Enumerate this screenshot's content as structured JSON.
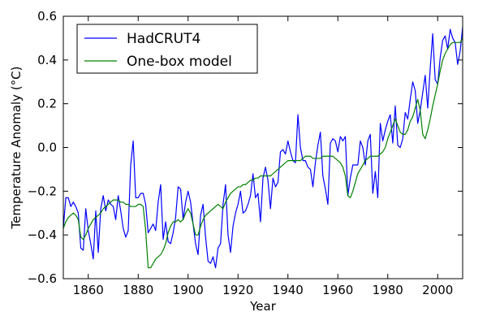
{
  "chart_data": {
    "type": "line",
    "title": "",
    "xlabel": "Year",
    "ylabel": "Temperature Anomaly (°C)",
    "xlim": [
      1850,
      2010
    ],
    "ylim": [
      -0.6,
      0.6
    ],
    "xticks": [
      1860,
      1880,
      1900,
      1920,
      1940,
      1960,
      1980,
      2000
    ],
    "yticks": [
      -0.6,
      -0.4,
      -0.2,
      0.0,
      0.2,
      0.4,
      0.6
    ],
    "xtick_labels": [
      "1860",
      "1880",
      "1900",
      "1920",
      "1940",
      "1960",
      "1980",
      "2000"
    ],
    "ytick_labels": [
      "−0.6",
      "−0.4",
      "−0.2",
      "0.0",
      "0.2",
      "0.4",
      "0.6"
    ],
    "grid": false,
    "legend_position": "top-left",
    "series": [
      {
        "name": "HadCRUT4",
        "color": "#0000ff",
        "x": [
          1850,
          1851,
          1852,
          1853,
          1854,
          1855,
          1856,
          1857,
          1858,
          1859,
          1860,
          1861,
          1862,
          1863,
          1864,
          1865,
          1866,
          1867,
          1868,
          1869,
          1870,
          1871,
          1872,
          1873,
          1874,
          1875,
          1876,
          1877,
          1878,
          1879,
          1880,
          1881,
          1882,
          1883,
          1884,
          1885,
          1886,
          1887,
          1888,
          1889,
          1890,
          1891,
          1892,
          1893,
          1894,
          1895,
          1896,
          1897,
          1898,
          1899,
          1900,
          1901,
          1902,
          1903,
          1904,
          1905,
          1906,
          1907,
          1908,
          1909,
          1910,
          1911,
          1912,
          1913,
          1914,
          1915,
          1916,
          1917,
          1918,
          1919,
          1920,
          1921,
          1922,
          1923,
          1924,
          1925,
          1926,
          1927,
          1928,
          1929,
          1930,
          1931,
          1932,
          1933,
          1934,
          1935,
          1936,
          1937,
          1938,
          1939,
          1940,
          1941,
          1942,
          1943,
          1944,
          1945,
          1946,
          1947,
          1948,
          1949,
          1950,
          1951,
          1952,
          1953,
          1954,
          1955,
          1956,
          1957,
          1958,
          1959,
          1960,
          1961,
          1962,
          1963,
          1964,
          1965,
          1966,
          1967,
          1968,
          1969,
          1970,
          1971,
          1972,
          1973,
          1974,
          1975,
          1976,
          1977,
          1978,
          1979,
          1980,
          1981,
          1982,
          1983,
          1984,
          1985,
          1986,
          1987,
          1988,
          1989,
          1990,
          1991,
          1992,
          1993,
          1994,
          1995,
          1996,
          1997,
          1998,
          1999,
          2000,
          2001,
          2002,
          2003,
          2004,
          2005,
          2006,
          2007,
          2008,
          2009,
          2010
        ],
        "y": [
          -0.37,
          -0.23,
          -0.23,
          -0.27,
          -0.25,
          -0.27,
          -0.3,
          -0.46,
          -0.47,
          -0.28,
          -0.38,
          -0.44,
          -0.51,
          -0.29,
          -0.48,
          -0.28,
          -0.22,
          -0.29,
          -0.24,
          -0.26,
          -0.27,
          -0.33,
          -0.22,
          -0.29,
          -0.37,
          -0.41,
          -0.38,
          -0.08,
          0.03,
          -0.23,
          -0.23,
          -0.21,
          -0.21,
          -0.26,
          -0.39,
          -0.37,
          -0.35,
          -0.38,
          -0.25,
          -0.17,
          -0.42,
          -0.34,
          -0.43,
          -0.44,
          -0.39,
          -0.32,
          -0.18,
          -0.19,
          -0.33,
          -0.25,
          -0.2,
          -0.25,
          -0.35,
          -0.44,
          -0.49,
          -0.31,
          -0.26,
          -0.41,
          -0.52,
          -0.53,
          -0.5,
          -0.55,
          -0.46,
          -0.44,
          -0.26,
          -0.17,
          -0.4,
          -0.48,
          -0.36,
          -0.3,
          -0.26,
          -0.2,
          -0.3,
          -0.29,
          -0.26,
          -0.22,
          -0.12,
          -0.23,
          -0.21,
          -0.34,
          -0.14,
          -0.09,
          -0.15,
          -0.28,
          -0.14,
          -0.18,
          -0.16,
          -0.02,
          -0.01,
          -0.03,
          0.03,
          -0.02,
          -0.06,
          -0.07,
          0.15,
          0.0,
          -0.06,
          -0.06,
          -0.09,
          -0.1,
          -0.18,
          -0.07,
          0.01,
          0.07,
          -0.13,
          -0.19,
          -0.26,
          0.02,
          0.04,
          0.03,
          -0.02,
          0.05,
          0.03,
          0.05,
          -0.22,
          -0.14,
          -0.08,
          -0.08,
          -0.08,
          0.03,
          0.0,
          -0.08,
          0.03,
          0.06,
          -0.21,
          -0.11,
          -0.23,
          0.11,
          0.03,
          0.08,
          0.12,
          0.15,
          0.02,
          0.19,
          0.01,
          0.0,
          0.04,
          0.16,
          0.13,
          0.22,
          0.3,
          0.26,
          0.11,
          0.17,
          0.25,
          0.33,
          0.18,
          0.36,
          0.52,
          0.31,
          0.29,
          0.41,
          0.49,
          0.51,
          0.45,
          0.54,
          0.5,
          0.48,
          0.38,
          0.44,
          0.55
        ]
      },
      {
        "name": "One-box model",
        "color": "#008000",
        "x": [
          1850,
          1851,
          1852,
          1853,
          1854,
          1855,
          1856,
          1857,
          1858,
          1859,
          1860,
          1861,
          1862,
          1863,
          1864,
          1865,
          1866,
          1867,
          1868,
          1869,
          1870,
          1871,
          1872,
          1873,
          1874,
          1875,
          1876,
          1877,
          1878,
          1879,
          1880,
          1881,
          1882,
          1883,
          1884,
          1885,
          1886,
          1887,
          1888,
          1889,
          1890,
          1891,
          1892,
          1893,
          1894,
          1895,
          1896,
          1897,
          1898,
          1899,
          1900,
          1901,
          1902,
          1903,
          1904,
          1905,
          1906,
          1907,
          1908,
          1909,
          1910,
          1911,
          1912,
          1913,
          1914,
          1915,
          1916,
          1917,
          1918,
          1919,
          1920,
          1921,
          1922,
          1923,
          1924,
          1925,
          1926,
          1927,
          1928,
          1929,
          1930,
          1931,
          1932,
          1933,
          1934,
          1935,
          1936,
          1937,
          1938,
          1939,
          1940,
          1941,
          1942,
          1943,
          1944,
          1945,
          1946,
          1947,
          1948,
          1949,
          1950,
          1951,
          1952,
          1953,
          1954,
          1955,
          1956,
          1957,
          1958,
          1959,
          1960,
          1961,
          1962,
          1963,
          1964,
          1965,
          1966,
          1967,
          1968,
          1969,
          1970,
          1971,
          1972,
          1973,
          1974,
          1975,
          1976,
          1977,
          1978,
          1979,
          1980,
          1981,
          1982,
          1983,
          1984,
          1985,
          1986,
          1987,
          1988,
          1989,
          1990,
          1991,
          1992,
          1993,
          1994,
          1995,
          1996,
          1997,
          1998,
          1999,
          2000,
          2001,
          2002,
          2003,
          2004,
          2005,
          2006,
          2007,
          2008,
          2009,
          2010
        ],
        "y": [
          -0.37,
          -0.34,
          -0.32,
          -0.31,
          -0.3,
          -0.31,
          -0.33,
          -0.41,
          -0.42,
          -0.4,
          -0.37,
          -0.35,
          -0.33,
          -0.32,
          -0.31,
          -0.3,
          -0.28,
          -0.27,
          -0.26,
          -0.25,
          -0.24,
          -0.24,
          -0.24,
          -0.25,
          -0.25,
          -0.26,
          -0.26,
          -0.27,
          -0.27,
          -0.27,
          -0.26,
          -0.26,
          -0.27,
          -0.38,
          -0.55,
          -0.55,
          -0.53,
          -0.51,
          -0.5,
          -0.49,
          -0.47,
          -0.44,
          -0.39,
          -0.36,
          -0.34,
          -0.34,
          -0.33,
          -0.34,
          -0.33,
          -0.3,
          -0.28,
          -0.3,
          -0.35,
          -0.4,
          -0.4,
          -0.36,
          -0.33,
          -0.31,
          -0.3,
          -0.29,
          -0.28,
          -0.27,
          -0.26,
          -0.27,
          -0.28,
          -0.25,
          -0.23,
          -0.21,
          -0.2,
          -0.19,
          -0.18,
          -0.18,
          -0.17,
          -0.17,
          -0.16,
          -0.15,
          -0.15,
          -0.14,
          -0.14,
          -0.13,
          -0.13,
          -0.13,
          -0.13,
          -0.13,
          -0.12,
          -0.11,
          -0.1,
          -0.09,
          -0.08,
          -0.07,
          -0.06,
          -0.06,
          -0.06,
          -0.06,
          -0.06,
          -0.06,
          -0.05,
          -0.04,
          -0.04,
          -0.04,
          -0.05,
          -0.05,
          -0.05,
          -0.05,
          -0.04,
          -0.04,
          -0.04,
          -0.04,
          -0.04,
          -0.05,
          -0.06,
          -0.07,
          -0.09,
          -0.13,
          -0.22,
          -0.23,
          -0.2,
          -0.16,
          -0.12,
          -0.1,
          -0.08,
          -0.06,
          -0.05,
          -0.04,
          -0.04,
          -0.04,
          -0.04,
          -0.03,
          -0.02,
          0.0,
          0.04,
          0.07,
          0.1,
          0.13,
          0.1,
          0.07,
          0.06,
          0.06,
          0.08,
          0.12,
          0.14,
          0.18,
          0.22,
          0.17,
          0.06,
          0.04,
          0.08,
          0.13,
          0.19,
          0.24,
          0.29,
          0.35,
          0.4,
          0.43,
          0.45,
          0.47,
          0.48,
          0.48,
          0.48,
          0.48,
          0.5
        ]
      }
    ]
  }
}
